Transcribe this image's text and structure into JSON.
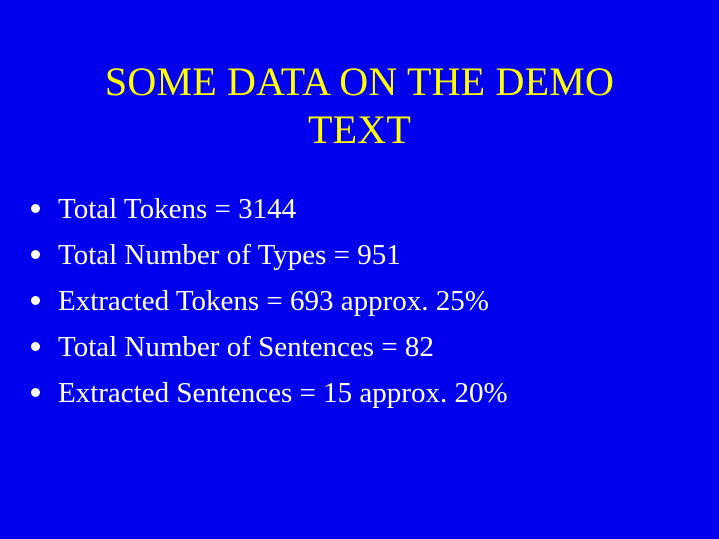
{
  "slide": {
    "title_line1": "SOME DATA ON THE DEMO",
    "title_line2": "TEXT",
    "bullets": [
      "Total Tokens = 3144",
      "Total Number of Types = 951",
      "Extracted Tokens = 693 approx. 25%",
      "Total Number of Sentences = 82",
      "Extracted Sentences = 15 approx. 20%"
    ]
  },
  "colors": {
    "background": "#0000ee",
    "title": "#ffff00",
    "text": "#ffffff"
  }
}
